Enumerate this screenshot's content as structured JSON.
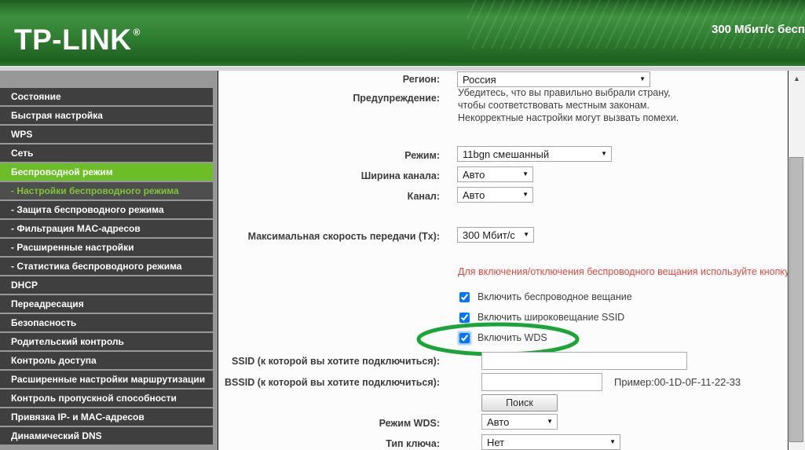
{
  "colors": {
    "accent_green": "#6cbe27",
    "annotation_green": "#1aa637",
    "note_red": "#e8473f",
    "header_green": "#2f7d31"
  },
  "header": {
    "logo": "TP-LINK",
    "logo_reg": "®",
    "tagline": "300 Мбит/с бесп"
  },
  "sidebar": {
    "items": [
      {
        "id": "status",
        "label": "Состояние",
        "type": "main"
      },
      {
        "id": "quick-setup",
        "label": "Быстрая настройка",
        "type": "main"
      },
      {
        "id": "wps",
        "label": "WPS",
        "type": "main"
      },
      {
        "id": "network",
        "label": "Сеть",
        "type": "main"
      },
      {
        "id": "wireless",
        "label": "Беспроводной режим",
        "type": "main",
        "active": true
      },
      {
        "id": "wireless-settings",
        "label": "- Настройки беспроводного режима",
        "type": "sub",
        "current": true
      },
      {
        "id": "wireless-security",
        "label": "- Защита беспроводного режима",
        "type": "sub"
      },
      {
        "id": "mac-filtering",
        "label": "- Фильтрация MAC-адресов",
        "type": "sub"
      },
      {
        "id": "advanced-settings",
        "label": "- Расширенные настройки",
        "type": "sub"
      },
      {
        "id": "wireless-statistics",
        "label": "- Статистика беспроводного режима",
        "type": "sub"
      },
      {
        "id": "dhcp",
        "label": "DHCP",
        "type": "main"
      },
      {
        "id": "forwarding",
        "label": "Переадресация",
        "type": "main"
      },
      {
        "id": "security",
        "label": "Безопасность",
        "type": "main"
      },
      {
        "id": "parental-control",
        "label": "Родительский контроль",
        "type": "main"
      },
      {
        "id": "access-control",
        "label": "Контроль доступа",
        "type": "main"
      },
      {
        "id": "advanced-routing",
        "label": "Расширенные настройки маршрутизации",
        "type": "main"
      },
      {
        "id": "bandwidth-control",
        "label": "Контроль пропускной способности",
        "type": "main"
      },
      {
        "id": "ip-mac-binding",
        "label": "Привязка IP- и MAC-адресов",
        "type": "main"
      },
      {
        "id": "ddns",
        "label": "Динамический DNS",
        "type": "main"
      }
    ]
  },
  "form": {
    "region": {
      "label": "Регион:",
      "value": "Россия"
    },
    "warning": {
      "label": "Предупреждение:",
      "lines": [
        "Убедитесь, что вы правильно выбрали страну,",
        "чтобы соответствовать местным законам.",
        "Некорректные настройки могут вызвать помехи."
      ]
    },
    "mode": {
      "label": "Режим:",
      "value": "11bgn смешанный"
    },
    "channel_width": {
      "label": "Ширина канала:",
      "value": "Авто"
    },
    "channel": {
      "label": "Канал:",
      "value": "Авто"
    },
    "max_tx": {
      "label": "Максимальная скорость передачи (Tx):",
      "value": "300 Мбит/с"
    },
    "wifi_note": "Для включения/отключения беспроводного вещания используйте кнопку Wi",
    "checkboxes": [
      {
        "label": "Включить беспроводное вещание",
        "checked": true
      },
      {
        "label": "Включить широковещание SSID",
        "checked": true
      },
      {
        "label": "Включить WDS",
        "checked": true,
        "annotated": true
      }
    ],
    "ssid": {
      "label": "SSID (к которой вы хотите подключиться):",
      "value": ""
    },
    "bssid": {
      "label": "BSSID (к которой вы хотите подключиться):",
      "value": "",
      "hint": "Пример:00-1D-0F-11-22-33"
    },
    "search_button": "Поиск",
    "wds_mode": {
      "label": "Режим WDS:",
      "value": "Авто"
    },
    "key_type": {
      "label": "Тип ключа:",
      "value": "Нет"
    }
  },
  "scrollbar": {
    "up_arrow": "▲"
  },
  "dropdown_arrow": "▼"
}
